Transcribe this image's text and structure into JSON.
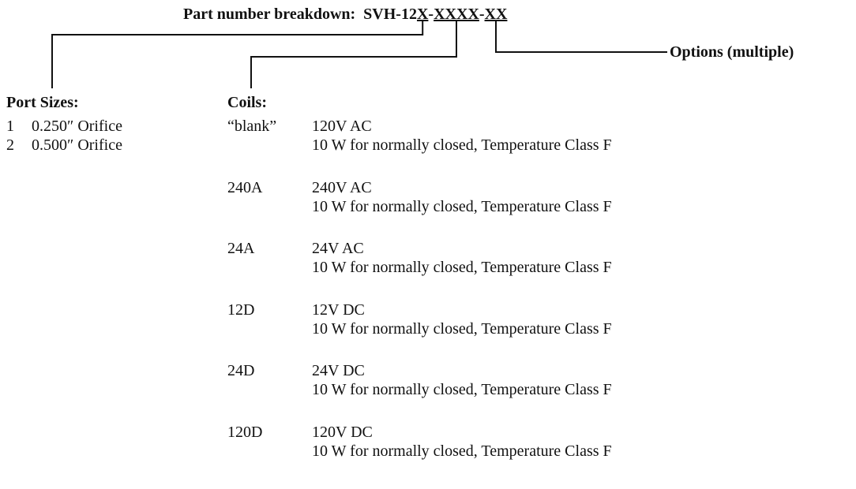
{
  "title": {
    "label": "Part number breakdown:",
    "code_parts": [
      "SVH-12",
      "X",
      "-",
      "XXXX",
      "-",
      "XX"
    ]
  },
  "options_label": "Options (multiple)",
  "port_sizes": {
    "heading": "Port Sizes:",
    "rows": [
      [
        "1",
        "0.250″ Orifice"
      ],
      [
        "2",
        "0.500″ Orifice"
      ]
    ]
  },
  "coils": {
    "heading": "Coils:",
    "rows": [
      {
        "code": "“blank”",
        "voltage": "120V AC",
        "description": "10 W for normally closed, Temperature Class F"
      },
      {
        "code": "240A",
        "voltage": "240V AC",
        "description": "10 W for normally closed, Temperature Class F"
      },
      {
        "code": "24A",
        "voltage": "24V AC",
        "description": "10 W for normally closed, Temperature Class F"
      },
      {
        "code": "12D",
        "voltage": "12V DC",
        "description": "10 W for normally closed, Temperature Class F"
      },
      {
        "code": "24D",
        "voltage": "24V DC",
        "description": "10 W for normally closed, Temperature Class F"
      },
      {
        "code": "120D",
        "voltage": "120V DC",
        "description": "10 W for normally closed, Temperature Class F"
      }
    ]
  }
}
